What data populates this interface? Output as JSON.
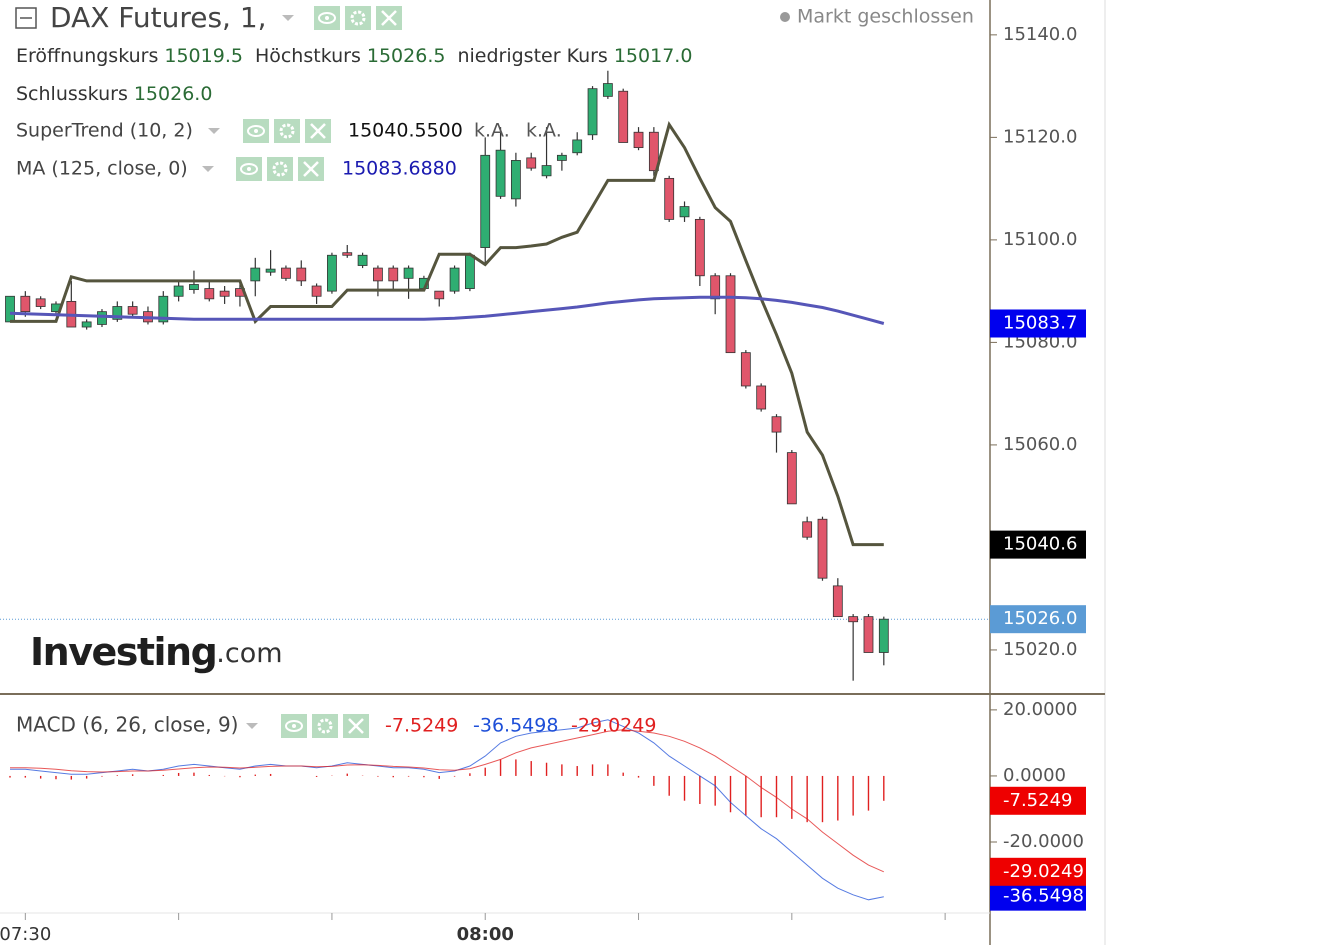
{
  "chart_data": [
    {
      "type": "candlestick",
      "title": "DAX Futures, 1,",
      "status": "Markt geschlossen",
      "watermark": {
        "brand": "Investing",
        "suffix": ".com"
      },
      "ohlc": [
        {
          "label": "Eröffnungskurs",
          "value": "15019.5"
        },
        {
          "label": "Höchstkurs",
          "value": "15026.5"
        },
        {
          "label": "niedrigster Kurs",
          "value": "15017.0"
        },
        {
          "label": "Schlusskurs",
          "value": "15026.0"
        }
      ],
      "x": [
        "07:29",
        "07:30",
        "07:31",
        "07:32",
        "07:33",
        "07:34",
        "07:35",
        "07:36",
        "07:37",
        "07:38",
        "07:39",
        "07:40",
        "07:41",
        "07:42",
        "07:43",
        "07:44",
        "07:45",
        "07:46",
        "07:47",
        "07:48",
        "07:49",
        "07:50",
        "07:51",
        "07:52",
        "07:53",
        "07:54",
        "07:55",
        "07:56",
        "07:57",
        "07:58",
        "07:59",
        "08:00",
        "08:01",
        "08:02",
        "08:03",
        "08:04",
        "08:05",
        "08:06",
        "08:07",
        "08:08",
        "08:09",
        "08:10",
        "08:11",
        "08:12",
        "08:13",
        "08:14",
        "08:15",
        "08:16",
        "08:17",
        "08:18",
        "08:19",
        "08:20",
        "08:21",
        "08:22",
        "08:23",
        "08:24",
        "08:25",
        "08:26"
      ],
      "open": [
        15084,
        15089,
        15088.5,
        15086,
        15088,
        15083,
        15083.5,
        15084.5,
        15087,
        15086,
        15084,
        15089,
        15090.3,
        15090.5,
        15090,
        15090.5,
        15092,
        15093.7,
        15094.5,
        15094.5,
        15091,
        15090,
        15097.5,
        15095,
        15094.5,
        15094.5,
        15092.5,
        15090.5,
        15090,
        15090,
        15090.5,
        15098.5,
        15108.5,
        15108,
        15116,
        15112.5,
        15115.5,
        15117,
        15120.5,
        15128,
        15129,
        15121,
        15121,
        15112,
        15104.5,
        15104,
        15093,
        15093,
        15078,
        15071.5,
        15065.5,
        15058.5,
        15045,
        15045.5,
        15032.5,
        15026.5,
        15026.5,
        15019.5
      ],
      "high": [
        15089,
        15090,
        15089,
        15088,
        15092,
        15084.5,
        15086.5,
        15088,
        15088,
        15087,
        15090,
        15092,
        15094,
        15092,
        15091,
        15092,
        15096.5,
        15098,
        15095,
        15096,
        15091.5,
        15097.5,
        15099,
        15097.5,
        15095,
        15095,
        15095,
        15093,
        15090,
        15095,
        15097.5,
        15120,
        15122,
        15117,
        15117,
        15122,
        15117,
        15121,
        15130,
        15133,
        15129.5,
        15122,
        15122,
        15112.5,
        15107.5,
        15104.5,
        15093.5,
        15093.5,
        15078.5,
        15072,
        15066,
        15059,
        15046,
        15046,
        15034,
        15027,
        15027,
        15026.5
      ],
      "low": [
        15084,
        15085,
        15086.5,
        15085.5,
        15083,
        15082.5,
        15083,
        15084,
        15085,
        15083.5,
        15083.5,
        15088,
        15089.5,
        15088,
        15087.5,
        15087,
        15089,
        15093,
        15092,
        15091,
        15087.5,
        15089.5,
        15096.5,
        15094.5,
        15089,
        15090,
        15088.5,
        15090,
        15087,
        15089.5,
        15090,
        15095,
        15108,
        15106.5,
        15113.5,
        15112,
        15113.5,
        15116.5,
        15119.5,
        15127.5,
        15119,
        15117.5,
        15112.5,
        15103.5,
        15103.5,
        15091,
        15085.5,
        15078,
        15071,
        15066.5,
        15058.5,
        15048.5,
        15041.5,
        15033.5,
        15026.5,
        15014,
        15019.5,
        15017
      ],
      "close": [
        15089,
        15086,
        15087,
        15087.5,
        15083,
        15084,
        15086,
        15087,
        15085.5,
        15084,
        15089,
        15091,
        15091.3,
        15088.5,
        15089,
        15089,
        15094.5,
        15094.3,
        15092.5,
        15092,
        15089,
        15097,
        15097,
        15097,
        15092,
        15092,
        15094.5,
        15092.5,
        15088.5,
        15094.5,
        15097,
        15116.5,
        15117.5,
        15115.5,
        15114,
        15114.5,
        15116.5,
        15119.5,
        15129.5,
        15130.5,
        15119,
        15118,
        15113.5,
        15104,
        15106.5,
        15093,
        15088.5,
        15078,
        15071.5,
        15067,
        15062.5,
        15048.5,
        15042,
        15034,
        15026.5,
        15025.5,
        15019.5,
        15026
      ],
      "up_color": "#2fae72",
      "down_color": "#e0566b",
      "close_color": "#5b9bd5",
      "series": [
        {
          "name": "SuperTrend (10, 2)",
          "color": "#55553e",
          "legend_values": [
            "15040.5500",
            "k.A.",
            "k.A."
          ],
          "value_label": "15040.6",
          "values": [
            15084.1,
            15084.1,
            15084.1,
            15084.1,
            15092.8,
            15092,
            15092,
            15092,
            15092,
            15092,
            15092,
            15092,
            15092,
            15092,
            15092,
            15092,
            15084.1,
            15087,
            15087,
            15087,
            15087,
            15087,
            15090.2,
            15090.2,
            15090.2,
            15090.2,
            15090.2,
            15090.2,
            15097.2,
            15097.2,
            15097.2,
            15095.2,
            15098.5,
            15098.5,
            15098.8,
            15099.2,
            15100.5,
            15101.5,
            15106.5,
            15111.6,
            15111.6,
            15111.6,
            15111.6,
            15122.5,
            15118,
            15112,
            15106.3,
            15103.6,
            15096,
            15088.5,
            15081.5,
            15074,
            15062.5,
            15058,
            15050,
            15040.55,
            15040.55,
            15040.55
          ]
        },
        {
          "name": "MA (125, close, 0)",
          "color": "#5656b8",
          "legend_values": [
            "15083.6880"
          ],
          "value_label": "15083.7",
          "values": [
            15085.7,
            15085.6,
            15085.5,
            15085.4,
            15085.3,
            15085.2,
            15085.1,
            15085,
            15084.9,
            15084.8,
            15084.7,
            15084.6,
            15084.5,
            15084.5,
            15084.5,
            15084.5,
            15084.5,
            15084.5,
            15084.5,
            15084.5,
            15084.5,
            15084.5,
            15084.5,
            15084.5,
            15084.5,
            15084.5,
            15084.5,
            15084.5,
            15084.6,
            15084.7,
            15084.9,
            15085.1,
            15085.4,
            15085.7,
            15086,
            15086.3,
            15086.6,
            15086.9,
            15087.3,
            15087.7,
            15088,
            15088.3,
            15088.5,
            15088.6,
            15088.7,
            15088.8,
            15088.8,
            15088.8,
            15088.7,
            15088.5,
            15088.2,
            15087.8,
            15087.3,
            15086.8,
            15086.1,
            15085.3,
            15084.5,
            15083.688
          ]
        }
      ],
      "ylim": [
        15011.6,
        15146.8
      ],
      "yticks": [
        {
          "value": 15140,
          "label": "15140.0"
        },
        {
          "value": 15120,
          "label": "15120.0"
        },
        {
          "value": 15100,
          "label": "15100.0"
        },
        {
          "value": 15080,
          "label": "15080.0"
        },
        {
          "value": 15060,
          "label": "15060.0"
        },
        {
          "value": 15020,
          "label": "15020.0"
        }
      ]
    },
    {
      "type": "line",
      "title": "MACD (6, 26, close, 9)",
      "x": [
        "07:29",
        "07:30",
        "07:31",
        "07:32",
        "07:33",
        "07:34",
        "07:35",
        "07:36",
        "07:37",
        "07:38",
        "07:39",
        "07:40",
        "07:41",
        "07:42",
        "07:43",
        "07:44",
        "07:45",
        "07:46",
        "07:47",
        "07:48",
        "07:49",
        "07:50",
        "07:51",
        "07:52",
        "07:53",
        "07:54",
        "07:55",
        "07:56",
        "07:57",
        "07:58",
        "07:59",
        "08:00",
        "08:01",
        "08:02",
        "08:03",
        "08:04",
        "08:05",
        "08:06",
        "08:07",
        "08:08",
        "08:09",
        "08:10",
        "08:11",
        "08:12",
        "08:13",
        "08:14",
        "08:15",
        "08:16",
        "08:17",
        "08:18",
        "08:19",
        "08:20",
        "08:21",
        "08:22",
        "08:23",
        "08:24",
        "08:25",
        "08:26"
      ],
      "xticks": [
        "07:30",
        {
          "value": "07:40",
          "label": null
        },
        {
          "value": "07:50",
          "label": null
        },
        "08:00",
        {
          "value": "08:10",
          "label": null
        },
        {
          "value": "08:20",
          "label": null
        },
        {
          "value": "08:30",
          "label": null
        }
      ],
      "series": [
        {
          "style": "histogram",
          "color": "#e02020",
          "value_label": "-7.5249",
          "values": [
            -0.5,
            -0.5,
            -0.8,
            -1,
            -1.1,
            -0.8,
            -0.2,
            0.2,
            0.5,
            0,
            0.3,
            0.9,
            1,
            0.3,
            -0.1,
            -0.4,
            0.4,
            0.6,
            0,
            0,
            -0.3,
            0.1,
            0.7,
            0.1,
            -0.2,
            -0.4,
            -0.2,
            -0.4,
            -0.9,
            -0.2,
            0.8,
            2.5,
            5,
            5,
            4.5,
            4,
            3.5,
            3,
            3.5,
            3.5,
            1,
            -0.5,
            -3,
            -6,
            -7.5,
            -8.5,
            -9,
            -11,
            -12,
            -12.5,
            -12.5,
            -13,
            -14,
            -14,
            -13.5,
            -12,
            -10.5,
            -7.5249
          ]
        },
        {
          "style": "line",
          "color": "#1e4fd8",
          "value_label": "-36.5498",
          "values": [
            2,
            2,
            1.5,
            1,
            0.5,
            0.5,
            1,
            1.5,
            2,
            1.5,
            2,
            3,
            3.5,
            3,
            2.5,
            2,
            3,
            3.5,
            3,
            3,
            2.5,
            3,
            4,
            3.5,
            3,
            2.5,
            2.5,
            2,
            1,
            1.5,
            3,
            6,
            10,
            12,
            13,
            13.5,
            14,
            14.5,
            16,
            17,
            15,
            13,
            10,
            6,
            3,
            0,
            -3,
            -8,
            -12,
            -16,
            -19,
            -23,
            -27,
            -31,
            -34,
            -36,
            -37.5,
            -36.5498
          ]
        },
        {
          "style": "line",
          "color": "#e02020",
          "value_label": "-29.0249",
          "values": [
            2.5,
            2.5,
            2.3,
            2,
            1.6,
            1.3,
            1.2,
            1.3,
            1.5,
            1.5,
            1.7,
            2.1,
            2.5,
            2.7,
            2.6,
            2.4,
            2.6,
            2.9,
            3,
            3,
            2.8,
            2.9,
            3.3,
            3.4,
            3.2,
            2.9,
            2.7,
            2.4,
            1.9,
            1.7,
            2.2,
            3.5,
            5,
            7,
            8.5,
            9.5,
            10.5,
            11.5,
            12.5,
            13.5,
            14,
            13.5,
            13,
            12,
            10.5,
            8.5,
            6,
            3,
            0,
            -3.5,
            -6.5,
            -10,
            -13,
            -17,
            -20.5,
            -24,
            -27,
            -29.0249
          ]
        }
      ],
      "ylim": [
        -41.5,
        23.9
      ],
      "yticks": [
        {
          "value": 20,
          "label": "20.0000"
        },
        {
          "value": 0,
          "label": "0.0000"
        },
        {
          "value": -20,
          "label": "-20.0000"
        }
      ]
    }
  ]
}
